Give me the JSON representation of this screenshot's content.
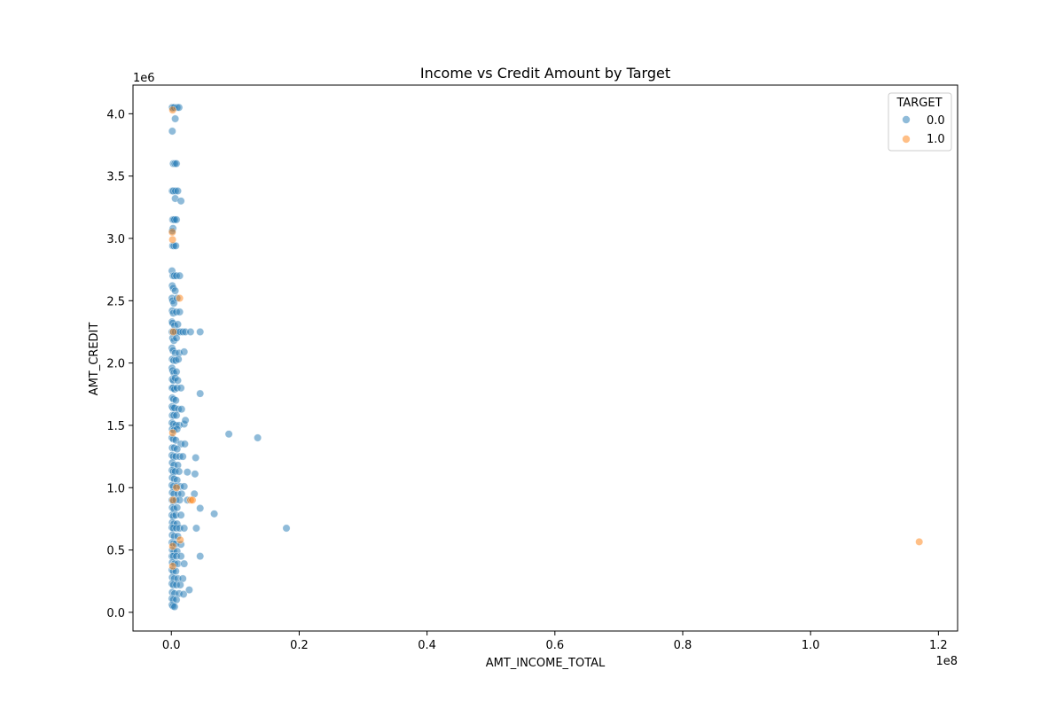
{
  "chart_data": {
    "type": "scatter",
    "title": "Income vs Credit Amount by Target",
    "xlabel": "AMT_INCOME_TOTAL",
    "ylabel": "AMT_CREDIT",
    "x_offset_label": "1e8",
    "y_offset_label": "1e6",
    "xlim": [
      -6000000,
      123000000
    ],
    "ylim": [
      -150000,
      4230000
    ],
    "x_ticks": [
      0,
      20000000,
      40000000,
      60000000,
      80000000,
      100000000,
      120000000
    ],
    "x_tick_labels": [
      "0.0",
      "0.2",
      "0.4",
      "0.6",
      "0.8",
      "1.0",
      "1.2"
    ],
    "y_ticks": [
      0,
      500000,
      1000000,
      1500000,
      2000000,
      2500000,
      3000000,
      3500000,
      4000000
    ],
    "y_tick_labels": [
      "0.0",
      "0.5",
      "1.0",
      "1.5",
      "2.0",
      "2.5",
      "3.0",
      "3.5",
      "4.0"
    ],
    "grid": false,
    "legend": {
      "title": "TARGET",
      "position": "top-right"
    },
    "series": [
      {
        "name": "0.0",
        "color": "#1f77b4",
        "points": [
          [
            100000,
            4050000
          ],
          [
            180000,
            4050000
          ],
          [
            250000,
            4045000
          ],
          [
            450000,
            4050000
          ],
          [
            900000,
            4050000
          ],
          [
            1200000,
            4050000
          ],
          [
            600000,
            3960000
          ],
          [
            150000,
            3860000
          ],
          [
            300000,
            3600000
          ],
          [
            550000,
            3600000
          ],
          [
            800000,
            3600000
          ],
          [
            150000,
            3380000
          ],
          [
            300000,
            3380000
          ],
          [
            650000,
            3380000
          ],
          [
            1000000,
            3380000
          ],
          [
            600000,
            3320000
          ],
          [
            1500000,
            3300000
          ],
          [
            200000,
            3150000
          ],
          [
            350000,
            3150000
          ],
          [
            500000,
            3150000
          ],
          [
            800000,
            3150000
          ],
          [
            250000,
            3080000
          ],
          [
            150000,
            3060000
          ],
          [
            200000,
            2940000
          ],
          [
            400000,
            2940000
          ],
          [
            700000,
            2940000
          ],
          [
            100000,
            2740000
          ],
          [
            250000,
            2700000
          ],
          [
            450000,
            2700000
          ],
          [
            800000,
            2700000
          ],
          [
            1300000,
            2700000
          ],
          [
            150000,
            2620000
          ],
          [
            300000,
            2600000
          ],
          [
            600000,
            2580000
          ],
          [
            100000,
            2520000
          ],
          [
            200000,
            2500000
          ],
          [
            400000,
            2480000
          ],
          [
            900000,
            2520000
          ],
          [
            150000,
            2420000
          ],
          [
            300000,
            2400000
          ],
          [
            800000,
            2410000
          ],
          [
            1300000,
            2410000
          ],
          [
            100000,
            2330000
          ],
          [
            200000,
            2320000
          ],
          [
            500000,
            2300000
          ],
          [
            1000000,
            2310000
          ],
          [
            100000,
            2250000
          ],
          [
            300000,
            2250000
          ],
          [
            600000,
            2250000
          ],
          [
            1000000,
            2250000
          ],
          [
            1400000,
            2250000
          ],
          [
            1800000,
            2250000
          ],
          [
            2200000,
            2250000
          ],
          [
            3000000,
            2250000
          ],
          [
            4500000,
            2250000
          ],
          [
            200000,
            2200000
          ],
          [
            400000,
            2180000
          ],
          [
            800000,
            2200000
          ],
          [
            100000,
            2120000
          ],
          [
            250000,
            2100000
          ],
          [
            600000,
            2080000
          ],
          [
            1200000,
            2080000
          ],
          [
            2000000,
            2090000
          ],
          [
            150000,
            2030000
          ],
          [
            350000,
            2020000
          ],
          [
            700000,
            2020000
          ],
          [
            1100000,
            2030000
          ],
          [
            100000,
            1960000
          ],
          [
            200000,
            1940000
          ],
          [
            400000,
            1920000
          ],
          [
            800000,
            1930000
          ],
          [
            150000,
            1870000
          ],
          [
            300000,
            1860000
          ],
          [
            600000,
            1880000
          ],
          [
            1000000,
            1860000
          ],
          [
            100000,
            1800000
          ],
          [
            250000,
            1800000
          ],
          [
            500000,
            1790000
          ],
          [
            900000,
            1800000
          ],
          [
            1500000,
            1800000
          ],
          [
            4500000,
            1755000
          ],
          [
            150000,
            1720000
          ],
          [
            350000,
            1710000
          ],
          [
            700000,
            1700000
          ],
          [
            100000,
            1650000
          ],
          [
            250000,
            1640000
          ],
          [
            500000,
            1640000
          ],
          [
            1100000,
            1630000
          ],
          [
            1600000,
            1630000
          ],
          [
            150000,
            1580000
          ],
          [
            400000,
            1580000
          ],
          [
            800000,
            1580000
          ],
          [
            100000,
            1520000
          ],
          [
            300000,
            1510000
          ],
          [
            700000,
            1500000
          ],
          [
            1200000,
            1500000
          ],
          [
            2000000,
            1510000
          ],
          [
            2200000,
            1540000
          ],
          [
            150000,
            1470000
          ],
          [
            400000,
            1460000
          ],
          [
            900000,
            1470000
          ],
          [
            9000000,
            1430000
          ],
          [
            13500000,
            1400000
          ],
          [
            100000,
            1400000
          ],
          [
            300000,
            1390000
          ],
          [
            700000,
            1380000
          ],
          [
            1500000,
            1350000
          ],
          [
            2100000,
            1350000
          ],
          [
            150000,
            1320000
          ],
          [
            450000,
            1320000
          ],
          [
            900000,
            1310000
          ],
          [
            100000,
            1260000
          ],
          [
            300000,
            1250000
          ],
          [
            700000,
            1250000
          ],
          [
            1300000,
            1250000
          ],
          [
            1800000,
            1250000
          ],
          [
            3800000,
            1240000
          ],
          [
            150000,
            1200000
          ],
          [
            400000,
            1180000
          ],
          [
            1000000,
            1180000
          ],
          [
            100000,
            1140000
          ],
          [
            300000,
            1130000
          ],
          [
            600000,
            1130000
          ],
          [
            1200000,
            1130000
          ],
          [
            2500000,
            1125000
          ],
          [
            3700000,
            1110000
          ],
          [
            150000,
            1080000
          ],
          [
            450000,
            1070000
          ],
          [
            900000,
            1060000
          ],
          [
            100000,
            1020000
          ],
          [
            300000,
            1010000
          ],
          [
            800000,
            1010000
          ],
          [
            1400000,
            1010000
          ],
          [
            2000000,
            1010000
          ],
          [
            150000,
            960000
          ],
          [
            400000,
            950000
          ],
          [
            1000000,
            950000
          ],
          [
            1600000,
            950000
          ],
          [
            3600000,
            950000
          ],
          [
            100000,
            900000
          ],
          [
            300000,
            890000
          ],
          [
            700000,
            900000
          ],
          [
            1300000,
            900000
          ],
          [
            2500000,
            900000
          ],
          [
            150000,
            840000
          ],
          [
            400000,
            830000
          ],
          [
            900000,
            840000
          ],
          [
            4500000,
            835000
          ],
          [
            6700000,
            790000
          ],
          [
            100000,
            780000
          ],
          [
            300000,
            770000
          ],
          [
            700000,
            780000
          ],
          [
            1500000,
            780000
          ],
          [
            150000,
            720000
          ],
          [
            400000,
            710000
          ],
          [
            900000,
            710000
          ],
          [
            100000,
            680000
          ],
          [
            300000,
            675000
          ],
          [
            800000,
            675000
          ],
          [
            1300000,
            675000
          ],
          [
            2000000,
            675000
          ],
          [
            3900000,
            675000
          ],
          [
            18000000,
            675000
          ],
          [
            150000,
            620000
          ],
          [
            450000,
            610000
          ],
          [
            1000000,
            610000
          ],
          [
            100000,
            560000
          ],
          [
            300000,
            550000
          ],
          [
            700000,
            550000
          ],
          [
            1500000,
            545000
          ],
          [
            150000,
            500000
          ],
          [
            400000,
            490000
          ],
          [
            900000,
            490000
          ],
          [
            100000,
            450000
          ],
          [
            300000,
            450000
          ],
          [
            800000,
            450000
          ],
          [
            1500000,
            450000
          ],
          [
            4500000,
            450000
          ],
          [
            150000,
            400000
          ],
          [
            500000,
            390000
          ],
          [
            1000000,
            390000
          ],
          [
            2000000,
            390000
          ],
          [
            100000,
            340000
          ],
          [
            300000,
            330000
          ],
          [
            700000,
            330000
          ],
          [
            150000,
            280000
          ],
          [
            450000,
            270000
          ],
          [
            1000000,
            270000
          ],
          [
            1800000,
            270000
          ],
          [
            100000,
            230000
          ],
          [
            300000,
            220000
          ],
          [
            800000,
            220000
          ],
          [
            1400000,
            220000
          ],
          [
            2800000,
            180000
          ],
          [
            150000,
            160000
          ],
          [
            500000,
            150000
          ],
          [
            1200000,
            150000
          ],
          [
            1900000,
            145000
          ],
          [
            100000,
            110000
          ],
          [
            300000,
            100000
          ],
          [
            800000,
            100000
          ],
          [
            100000,
            60000
          ],
          [
            250000,
            50000
          ],
          [
            500000,
            45000
          ]
        ]
      },
      {
        "name": "1.0",
        "color": "#ff7f0e",
        "points": [
          [
            200000,
            4030000
          ],
          [
            150000,
            3050000
          ],
          [
            180000,
            2990000
          ],
          [
            1300000,
            2520000
          ],
          [
            300000,
            2250000
          ],
          [
            200000,
            1440000
          ],
          [
            800000,
            1000000
          ],
          [
            3000000,
            900000
          ],
          [
            3300000,
            900000
          ],
          [
            250000,
            900000
          ],
          [
            1400000,
            580000
          ],
          [
            200000,
            530000
          ],
          [
            200000,
            370000
          ],
          [
            117000000,
            565000
          ]
        ]
      }
    ]
  }
}
